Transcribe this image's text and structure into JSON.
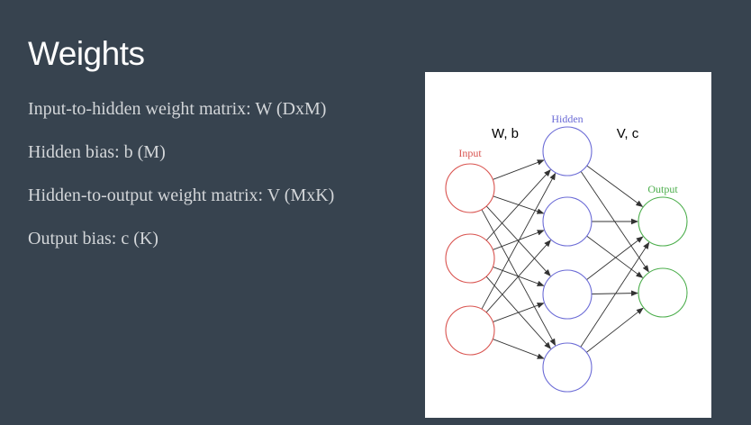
{
  "slide": {
    "title": "Weights",
    "bullets": [
      "Input-to-hidden weight matrix: W (DxM)",
      "Hidden bias: b (M)",
      "Hidden-to-output weight matrix: V (MxK)",
      "Output bias: c (K)"
    ]
  },
  "diagram": {
    "layers": {
      "input": {
        "label": "Input",
        "nodes": 3,
        "color": "#d9534f"
      },
      "hidden": {
        "label": "Hidden",
        "nodes": 4,
        "color": "#6b6bd6"
      },
      "output": {
        "label": "Output",
        "nodes": 2,
        "color": "#4cae4c"
      }
    },
    "weight_labels": {
      "input_to_hidden": "W, b",
      "hidden_to_output": "V, c"
    },
    "edge_color": "#333333"
  }
}
